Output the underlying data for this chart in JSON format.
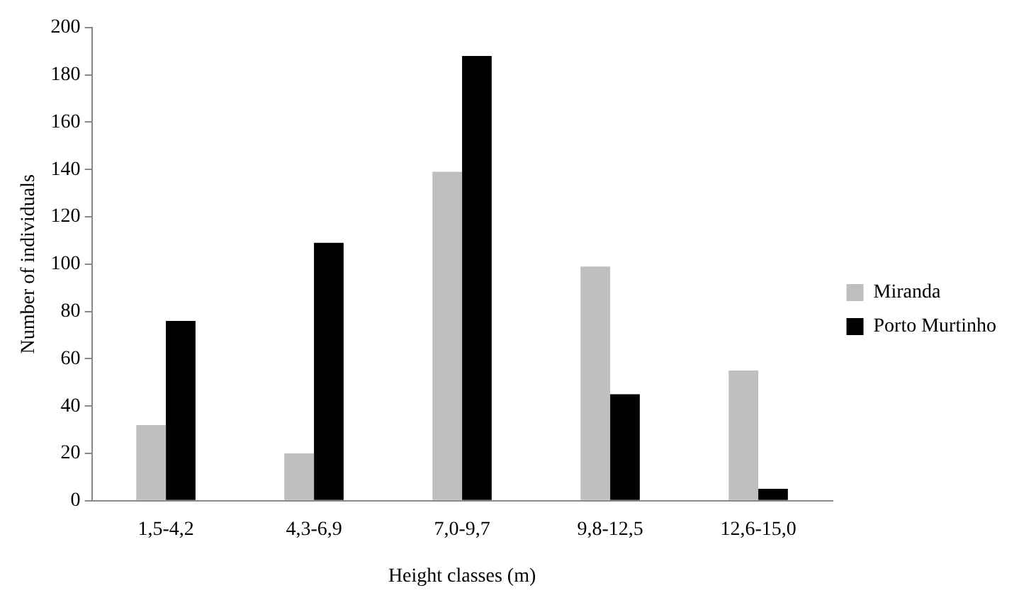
{
  "chart_data": {
    "type": "bar",
    "xlabel": "Height classes (m)",
    "ylabel": "Number of individuals",
    "categories": [
      "1,5-4,2",
      "4,3-6,9",
      "7,0-9,7",
      "9,8-12,5",
      "12,6-15,0"
    ],
    "series": [
      {
        "name": "Miranda",
        "color": "#bfbfbf",
        "values": [
          32,
          20,
          139,
          99,
          55
        ]
      },
      {
        "name": "Porto Murtinho",
        "color": "#000000",
        "values": [
          76,
          109,
          188,
          45,
          5
        ]
      }
    ],
    "ylim": [
      0,
      200
    ],
    "yticks": [
      0,
      20,
      40,
      60,
      80,
      100,
      120,
      140,
      160,
      180,
      200
    ],
    "grid": false,
    "legend": "right"
  }
}
